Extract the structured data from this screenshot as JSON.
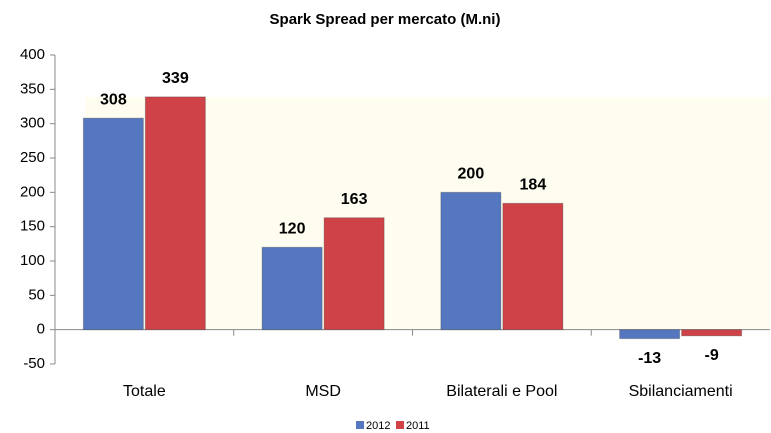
{
  "chart_data": {
    "type": "bar",
    "title": "Spark Spread per mercato (M.ni)",
    "categories": [
      "Totale",
      "MSD",
      "Bilaterali e Pool",
      "Sbilanciamenti"
    ],
    "series": [
      {
        "name": "2012",
        "color": "#5577c0",
        "values": [
          308,
          120,
          200,
          -13
        ]
      },
      {
        "name": "2011",
        "color": "#cf4348",
        "values": [
          339,
          163,
          184,
          -9
        ]
      }
    ],
    "ylim": [
      -50,
      400
    ],
    "yticks": [
      -50,
      0,
      50,
      100,
      150,
      200,
      250,
      300,
      350,
      400
    ],
    "grid": false,
    "legend": "bottom"
  }
}
